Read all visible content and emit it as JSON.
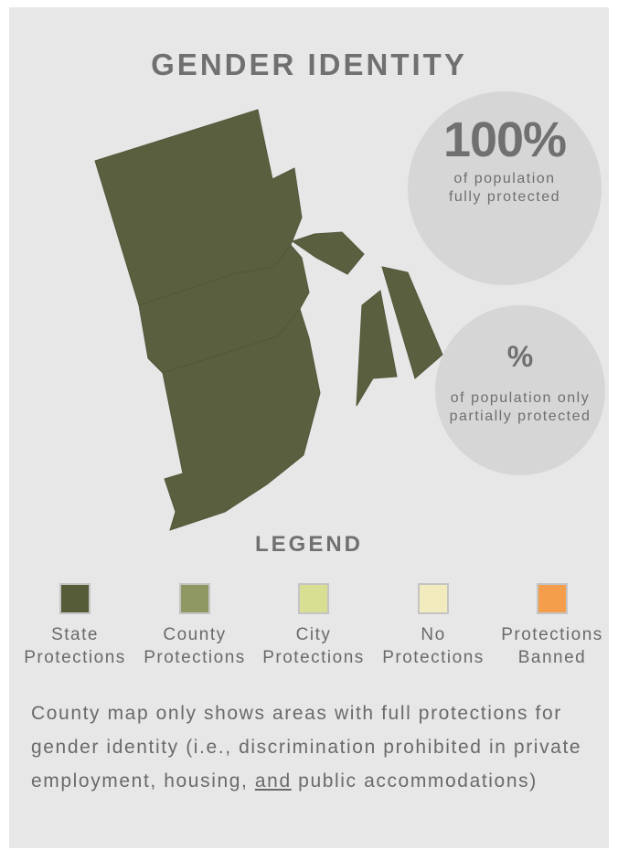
{
  "title": "GENDER IDENTITY",
  "map": {
    "region_color": "#5a5f3f",
    "regions": [
      "state-region-north",
      "state-region-central",
      "state-region-south",
      "state-region-east-small",
      "state-region-island-west",
      "state-region-island-east"
    ]
  },
  "stats": {
    "full": {
      "value": "100%",
      "label": "of population fully protected"
    },
    "partial": {
      "value": "%",
      "label": "of population only partially protected"
    }
  },
  "legend": {
    "title": "LEGEND",
    "items": [
      {
        "line1": "State",
        "line2": "Protections",
        "color": "#565b38"
      },
      {
        "line1": "County",
        "line2": "Protections",
        "color": "#8f9762"
      },
      {
        "line1": "City",
        "line2": "Protections",
        "color": "#d8df93"
      },
      {
        "line1": "No",
        "line2": "Protections",
        "color": "#f1ebbd"
      },
      {
        "line1": "Protections",
        "line2": "Banned",
        "color": "#f49e4c"
      }
    ]
  },
  "note": {
    "before": "County map only shows areas with full protections for gender identity (i.e., discrimination prohibited in private employment, housing, ",
    "emphasis": "and",
    "after": " public accommodations)"
  }
}
